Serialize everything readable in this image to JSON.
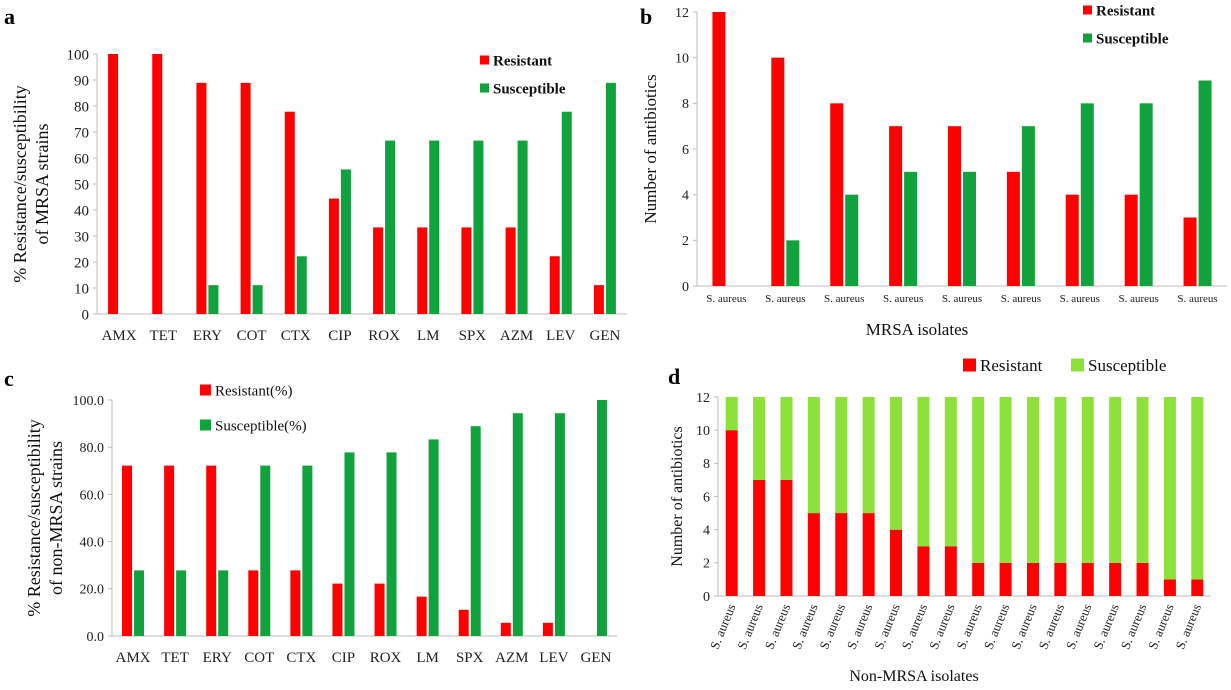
{
  "colors": {
    "resistant": "#ff0000",
    "susceptible_dark": "#10a23c",
    "susceptible_light": "#8ee03a"
  },
  "chart_data": [
    {
      "panel": "a",
      "type": "bar",
      "ylabel": "% Resistance/susceptibility of MRSA strains",
      "ylim": [
        0,
        100
      ],
      "ytick_step": 10,
      "yticks": [
        "0",
        "10",
        "20",
        "30",
        "40",
        "50",
        "60",
        "70",
        "80",
        "90",
        "100"
      ],
      "grid": false,
      "legend": "top-right",
      "categories": [
        "AMX",
        "TET",
        "ERY",
        "COT",
        "CTX",
        "CIP",
        "ROX",
        "LM",
        "SPX",
        "AZM",
        "LEV",
        "GEN"
      ],
      "series": [
        {
          "name": "Resistant",
          "values": [
            100,
            100,
            88.9,
            88.9,
            77.8,
            44.4,
            33.3,
            33.3,
            33.3,
            33.3,
            22.2,
            11.1
          ]
        },
        {
          "name": "Susceptible",
          "values": [
            0,
            0,
            11.1,
            11.1,
            22.2,
            55.6,
            66.7,
            66.7,
            66.7,
            66.7,
            77.8,
            88.9
          ]
        }
      ]
    },
    {
      "panel": "b",
      "type": "bar",
      "xlabel": "MRSA isolates",
      "ylabel": "Number of antibiotics",
      "ylim": [
        0,
        12
      ],
      "ytick_step": 2,
      "yticks": [
        "0",
        "2",
        "4",
        "6",
        "8",
        "10",
        "12"
      ],
      "grid": false,
      "legend": "top-right",
      "categories": [
        "S. aureus",
        "S. aureus",
        "S. aureus",
        "S. aureus",
        "S. aureus",
        "S. aureus",
        "S. aureus",
        "S. aureus",
        "S. aureus"
      ],
      "series": [
        {
          "name": "Resistant",
          "values": [
            12,
            10,
            8,
            7,
            7,
            5,
            4,
            4,
            3
          ]
        },
        {
          "name": "Susceptible",
          "values": [
            0,
            2,
            4,
            5,
            5,
            7,
            8,
            8,
            9
          ]
        }
      ]
    },
    {
      "panel": "c",
      "type": "bar",
      "ylabel": "% Resistance/susceptibility of non-MRSA strains",
      "ylim": [
        0,
        100
      ],
      "ytick_step": 20,
      "yticks": [
        "0.0",
        "20.0",
        "40.0",
        "60.0",
        "80.0",
        "100.0"
      ],
      "grid": false,
      "legend": "top-left",
      "categories": [
        "AMX",
        "TET",
        "ERY",
        "COT",
        "CTX",
        "CIP",
        "ROX",
        "LM",
        "SPX",
        "AZM",
        "LEV",
        "GEN"
      ],
      "series": [
        {
          "name": "Resistant(%)",
          "values": [
            72.2,
            72.2,
            72.2,
            27.8,
            27.8,
            22.2,
            22.2,
            16.7,
            11.1,
            5.6,
            5.6,
            0
          ]
        },
        {
          "name": "Susceptible(%)",
          "values": [
            27.8,
            27.8,
            27.8,
            72.2,
            72.2,
            77.8,
            77.8,
            83.3,
            88.9,
            94.4,
            94.4,
            100
          ]
        }
      ]
    },
    {
      "panel": "d",
      "type": "bar",
      "stacked": true,
      "xlabel": "Non-MRSA isolates",
      "ylabel": "Number of antibiotics",
      "ylim": [
        0,
        12
      ],
      "ytick_step": 2,
      "yticks": [
        "0",
        "2",
        "4",
        "6",
        "8",
        "10",
        "12"
      ],
      "grid": false,
      "legend": "top",
      "categories": [
        "S. aureus",
        "S. aureus",
        "S. aureus",
        "S. aureus",
        "S. aureus",
        "S. aureus",
        "S. aureus",
        "S. aureus",
        "S. aureus",
        "S. aureus",
        "S. aureus",
        "S. aureus",
        "S. aureus",
        "S. aureus",
        "S. aureus",
        "S. aureus",
        "S. aureus",
        "S. aureus"
      ],
      "series": [
        {
          "name": "Resistant",
          "values": [
            10,
            7,
            7,
            5,
            5,
            5,
            4,
            3,
            3,
            2,
            2,
            2,
            2,
            2,
            2,
            2,
            1,
            1
          ]
        },
        {
          "name": "Susceptible",
          "values": [
            2,
            5,
            5,
            7,
            7,
            7,
            8,
            9,
            9,
            10,
            10,
            10,
            10,
            10,
            10,
            10,
            11,
            11
          ]
        }
      ]
    }
  ]
}
